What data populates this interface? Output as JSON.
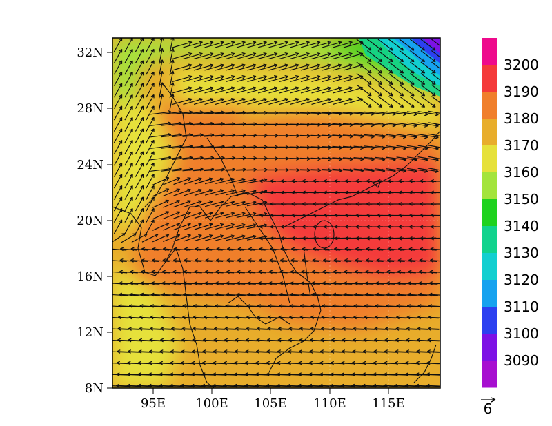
{
  "map": {
    "lat_ticks": [
      "32N",
      "28N",
      "24N",
      "20N",
      "16N",
      "12N",
      "8N"
    ],
    "lon_ticks": [
      "95E",
      "100E",
      "105E",
      "110E",
      "115E"
    ],
    "lat_range": [
      8,
      33
    ],
    "lon_range": [
      91.5,
      119.5
    ],
    "field": "geopotential height contours with wind vectors"
  },
  "colorbar": {
    "labels": [
      "3200",
      "3190",
      "3180",
      "3170",
      "3160",
      "3150",
      "3140",
      "3130",
      "3120",
      "3110",
      "3100",
      "3090"
    ],
    "colors_top_to_bottom": [
      "#ee0a8c",
      "#f43a3a",
      "#f07f2c",
      "#e8ad2b",
      "#e6e13a",
      "#a3e43c",
      "#1ed21e",
      "#11d38d",
      "#12cfd0",
      "#16a2ef",
      "#2c40f0",
      "#7d11e5",
      "#a70fd0"
    ]
  },
  "reference_vector": {
    "label": "6"
  },
  "colors": {
    "frame": "#000000",
    "vectors": "#111111",
    "coast": "#111111"
  }
}
